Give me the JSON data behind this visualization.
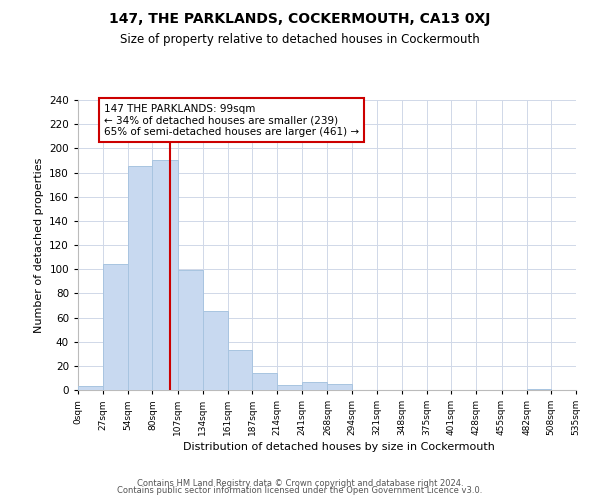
{
  "title": "147, THE PARKLANDS, COCKERMOUTH, CA13 0XJ",
  "subtitle": "Size of property relative to detached houses in Cockermouth",
  "xlabel": "Distribution of detached houses by size in Cockermouth",
  "ylabel": "Number of detached properties",
  "bar_edges": [
    0,
    27,
    54,
    80,
    107,
    134,
    161,
    187,
    214,
    241,
    268,
    294,
    321,
    348,
    375,
    401,
    428,
    455,
    482,
    508,
    535
  ],
  "bar_heights": [
    3,
    104,
    185,
    190,
    99,
    65,
    33,
    14,
    4,
    7,
    5,
    0,
    0,
    0,
    0,
    0,
    0,
    0,
    1,
    0
  ],
  "bar_color": "#c8d9f0",
  "bar_edgecolor": "#a8c4e0",
  "vline_x": 99,
  "vline_color": "#cc0000",
  "annotation_lines": [
    "147 THE PARKLANDS: 99sqm",
    "← 34% of detached houses are smaller (239)",
    "65% of semi-detached houses are larger (461) →"
  ],
  "annotation_box_facecolor": "white",
  "annotation_box_edgecolor": "#cc0000",
  "ylim": [
    0,
    240
  ],
  "yticks": [
    0,
    20,
    40,
    60,
    80,
    100,
    120,
    140,
    160,
    180,
    200,
    220,
    240
  ],
  "xtick_labels": [
    "0sqm",
    "27sqm",
    "54sqm",
    "80sqm",
    "107sqm",
    "134sqm",
    "161sqm",
    "187sqm",
    "214sqm",
    "241sqm",
    "268sqm",
    "294sqm",
    "321sqm",
    "348sqm",
    "375sqm",
    "401sqm",
    "428sqm",
    "455sqm",
    "482sqm",
    "508sqm",
    "535sqm"
  ],
  "footer_line1": "Contains HM Land Registry data © Crown copyright and database right 2024.",
  "footer_line2": "Contains public sector information licensed under the Open Government Licence v3.0.",
  "background_color": "#ffffff",
  "grid_color": "#d0d8e8"
}
